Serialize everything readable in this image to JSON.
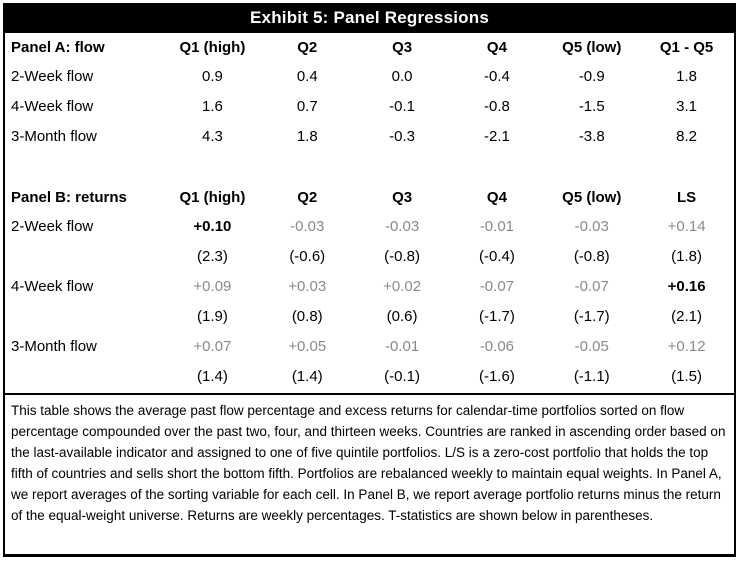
{
  "title": "Exhibit 5: Panel Regressions",
  "colors": {
    "title_bg": "#000000",
    "title_fg": "#ffffff",
    "ink": "#000000",
    "value_muted": "#8a8a8a"
  },
  "panelA": {
    "header": {
      "label": "Panel A: flow",
      "columns": [
        "Q1 (high)",
        "Q2",
        "Q3",
        "Q4",
        "Q5 (low)",
        "Q1 - Q5"
      ]
    },
    "rows": [
      {
        "label": "2-Week flow",
        "values": [
          "0.9",
          "0.4",
          "0.0",
          "-0.4",
          "-0.9",
          "1.8"
        ]
      },
      {
        "label": "4-Week flow",
        "values": [
          "1.6",
          "0.7",
          "-0.1",
          "-0.8",
          "-1.5",
          "3.1"
        ]
      },
      {
        "label": "3-Month flow",
        "values": [
          "4.3",
          "1.8",
          "-0.3",
          "-2.1",
          "-3.8",
          "8.2"
        ]
      }
    ]
  },
  "panelB": {
    "header": {
      "label": "Panel B: returns",
      "columns": [
        "Q1 (high)",
        "Q2",
        "Q3",
        "Q4",
        "Q5 (low)",
        "LS"
      ]
    },
    "rows": [
      {
        "label": "2-Week flow",
        "values": [
          "+0.10",
          "-0.03",
          "-0.03",
          "-0.01",
          "-0.03",
          "+0.14"
        ],
        "tstats": [
          "(2.3)",
          "(-0.6)",
          "(-0.8)",
          "(-0.4)",
          "(-0.8)",
          "(1.8)"
        ]
      },
      {
        "label": "4-Week flow",
        "values": [
          "+0.09",
          "+0.03",
          "+0.02",
          "-0.07",
          "-0.07",
          "+0.16"
        ],
        "tstats": [
          "(1.9)",
          "(0.8)",
          "(0.6)",
          "(-1.7)",
          "(-1.7)",
          "(2.1)"
        ]
      },
      {
        "label": "3-Month flow",
        "values": [
          "+0.07",
          "+0.05",
          "-0.01",
          "-0.06",
          "-0.05",
          "+0.12"
        ],
        "tstats": [
          "(1.4)",
          "(1.4)",
          "(-0.1)",
          "(-1.6)",
          "(-1.1)",
          "(1.5)"
        ]
      }
    ]
  },
  "notes": "This table shows the average past flow percentage and excess returns for calendar-time portfolios sorted on flow percentage compounded over the past two, four, and thirteen weeks. Countries are ranked in ascending order based on the last-available indicator and assigned to one of five quintile portfolios. L/S is a zero-cost portfolio that holds the top fifth of countries and sells short the bottom fifth. Portfolios are rebalanced weekly to maintain equal weights. In Panel A, we report averages of the sorting variable for each cell. In Panel B, we report average portfolio returns minus the return of the equal-weight universe. Returns are weekly percentages. T-statistics are shown below in parentheses."
}
